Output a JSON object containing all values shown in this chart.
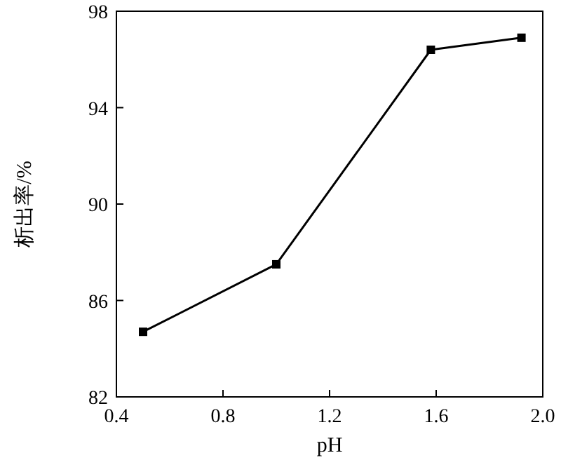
{
  "chart_data": {
    "type": "line",
    "xlabel": "pH",
    "ylabel": "析出率/%",
    "x": [
      0.5,
      1.0,
      1.58,
      1.92
    ],
    "series": [
      {
        "color": "#000000",
        "values": [
          84.7,
          87.5,
          96.4,
          96.9
        ]
      }
    ],
    "xlim": [
      0.4,
      2.0
    ],
    "xticks": [
      0.4,
      0.8,
      1.2,
      1.6,
      {
        "value": 2,
        "label": "2.0"
      }
    ],
    "ylim": [
      82,
      98
    ],
    "yticks": [
      82,
      86,
      90,
      94,
      98
    ],
    "marker": "square",
    "line_style": "solid",
    "grid": false
  }
}
